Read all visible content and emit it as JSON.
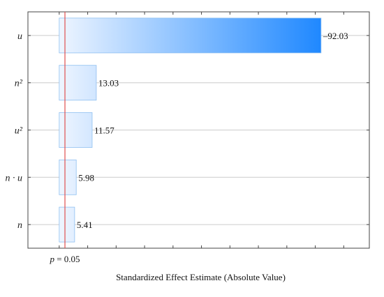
{
  "chart_data": {
    "type": "bar",
    "orientation": "horizontal",
    "categories": [
      "u",
      "n²",
      "u²",
      "n · u",
      "n"
    ],
    "values": [
      92.03,
      13.03,
      11.57,
      5.98,
      5.41
    ],
    "value_labels": [
      "–92.03",
      "13.03",
      "11.57",
      "5.98",
      "5.41"
    ],
    "xlabel": "Standardized Effect Estimate (Absolute Value)",
    "ylabel": "",
    "xlim": [
      -11,
      109
    ],
    "grid": "horizontal",
    "reference_line": {
      "value": 2.01,
      "label_prefix": "p",
      "label_suffix": " = 0.05",
      "color": "#e05050"
    },
    "colors": {
      "bar_light": "#eef5ff",
      "bar_dark": "#1f88ff",
      "bar_stroke": "#8fc0f0",
      "grid": "#cccccc",
      "frame": "#444444"
    }
  }
}
